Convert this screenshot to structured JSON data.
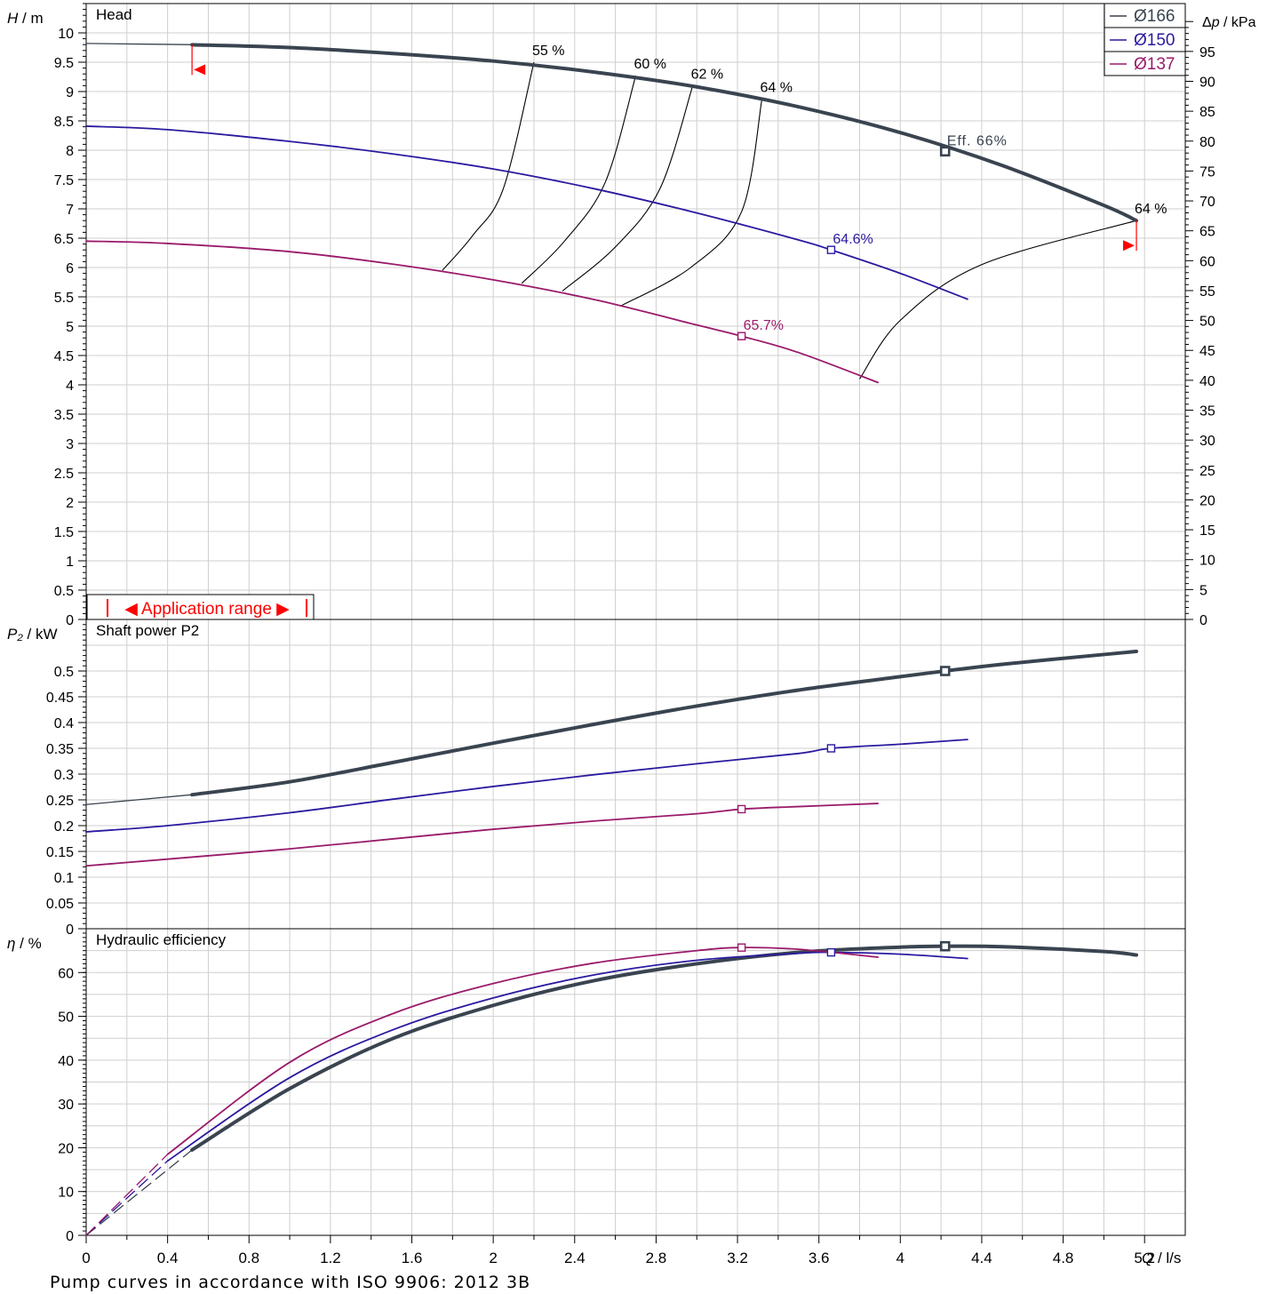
{
  "chart_data": {
    "type": "line",
    "x_axis": {
      "label": "Q",
      "unit": "l/s",
      "range": [
        0,
        5.4
      ],
      "grid_step": 0.2,
      "label_step": 0.4,
      "tick_labels": [
        "0",
        "0.4",
        "0.8",
        "1.2",
        "1.6",
        "2",
        "2.4",
        "2.8",
        "3.2",
        "3.6",
        "4",
        "4.4",
        "4.8",
        "5.2"
      ]
    },
    "series_colors": {
      "Ø166": "#3a4450",
      "Ø150": "#2a1aa0",
      "Ø137": "#9a1a6a"
    },
    "legend": {
      "placement": "top-right",
      "entries": [
        {
          "label": "Ø166",
          "color": "#3a4450"
        },
        {
          "label": "Ø150",
          "color": "#2a1aa0"
        },
        {
          "label": "Ø137",
          "color": "#9a1a6a"
        }
      ]
    },
    "application_range": {
      "label": "Application range",
      "q_min": 0.52,
      "q_max": 5.16,
      "color": "#ff0000"
    },
    "footer_note": "Pump curves in accordance with ISO 9906: 2012 3B",
    "panels": [
      {
        "id": "head",
        "title": "Head",
        "y_label": "H",
        "y_unit": "m",
        "y_range": [
          0,
          10.5
        ],
        "y_tick_labels": [
          "0",
          "0.5",
          "1",
          "1.5",
          "2",
          "2.5",
          "3",
          "3.5",
          "4",
          "4.5",
          "5",
          "5.5",
          "6",
          "6.5",
          "7",
          "7.5",
          "8",
          "8.5",
          "9",
          "9.5",
          "10"
        ],
        "secondary_axis": {
          "label": "Δp",
          "unit": "kPa",
          "factor": 9.81,
          "tick_labels": [
            "0",
            "5",
            "10",
            "15",
            "20",
            "25",
            "30",
            "35",
            "40",
            "45",
            "50",
            "55",
            "60",
            "65",
            "70",
            "75",
            "80",
            "85",
            "90",
            "95"
          ]
        },
        "series": [
          {
            "name": "Ø166",
            "x": [
              0,
              0.5,
              1.0,
              1.5,
              2.0,
              2.5,
              3.0,
              3.5,
              4.0,
              4.5,
              5.0,
              5.16
            ],
            "y": [
              9.82,
              9.8,
              9.75,
              9.65,
              9.52,
              9.33,
              9.08,
              8.74,
              8.3,
              7.74,
              7.06,
              6.8
            ],
            "bold_from": 0.52,
            "bep": [
              4.22,
              7.98
            ],
            "bep_label": "Eff. 66%"
          },
          {
            "name": "Ø150",
            "x": [
              0,
              0.4,
              1.0,
              1.5,
              2.0,
              2.5,
              3.0,
              3.5,
              3.66,
              4.0,
              4.33
            ],
            "y": [
              8.41,
              8.35,
              8.15,
              7.94,
              7.68,
              7.34,
              6.93,
              6.47,
              6.3,
              5.9,
              5.46
            ],
            "bep": [
              3.66,
              6.3
            ],
            "bep_label": "64.6%"
          },
          {
            "name": "Ø137",
            "x": [
              0,
              0.4,
              1.0,
              1.5,
              2.0,
              2.5,
              3.0,
              3.22,
              3.5,
              3.89
            ],
            "y": [
              6.45,
              6.41,
              6.27,
              6.06,
              5.79,
              5.45,
              5.02,
              4.83,
              4.55,
              4.04
            ],
            "bep": [
              3.22,
              4.83
            ],
            "bep_label": "65.7%"
          }
        ],
        "iso_efficiency": [
          {
            "label": "55 %",
            "x": [
              1.75,
              1.9,
              2.05,
              2.2
            ],
            "y": [
              5.95,
              6.55,
              7.35,
              9.5
            ]
          },
          {
            "label": "60 %",
            "x": [
              2.14,
              2.35,
              2.55,
              2.7
            ],
            "y": [
              5.73,
              6.45,
              7.45,
              9.27
            ]
          },
          {
            "label": "62 %",
            "x": [
              2.34,
              2.6,
              2.82,
              2.98
            ],
            "y": [
              5.6,
              6.35,
              7.35,
              9.1
            ]
          },
          {
            "label": "64 %",
            "x": [
              2.63,
              2.97,
              3.22,
              3.32
            ],
            "y": [
              5.35,
              6.0,
              6.95,
              8.87
            ]
          },
          {
            "label": "64 %",
            "x": [
              3.8,
              4.0,
              4.4,
              5.16
            ],
            "y": [
              4.1,
              5.1,
              6.05,
              6.8
            ]
          }
        ]
      },
      {
        "id": "power",
        "title": "Shaft power P2",
        "y_label": "P₂",
        "y_unit": "kW",
        "y_range": [
          0,
          0.6
        ],
        "y_tick_labels": [
          "0",
          "0.05",
          "0.1",
          "0.15",
          "0.2",
          "0.25",
          "0.3",
          "0.35",
          "0.4",
          "0.45",
          "0.5"
        ],
        "series": [
          {
            "name": "Ø166",
            "x": [
              0,
              0.52,
              1.0,
              1.5,
              2.0,
              2.5,
              3.0,
              3.5,
              4.0,
              4.22,
              4.5,
              5.0,
              5.16
            ],
            "y": [
              0.241,
              0.26,
              0.285,
              0.322,
              0.36,
              0.397,
              0.432,
              0.463,
              0.489,
              0.5,
              0.513,
              0.532,
              0.538
            ],
            "bold_from": 0.52,
            "bep": [
              4.22,
              0.5
            ]
          },
          {
            "name": "Ø150",
            "x": [
              0,
              0.4,
              1.0,
              1.5,
              2.0,
              2.5,
              3.0,
              3.5,
              3.66,
              4.0,
              4.33
            ],
            "y": [
              0.188,
              0.2,
              0.225,
              0.251,
              0.276,
              0.299,
              0.32,
              0.34,
              0.35,
              0.358,
              0.367
            ],
            "bep": [
              3.66,
              0.35
            ]
          },
          {
            "name": "Ø137",
            "x": [
              0,
              0.4,
              1.0,
              1.5,
              2.0,
              2.5,
              3.0,
              3.22,
              3.5,
              3.89
            ],
            "y": [
              0.122,
              0.135,
              0.155,
              0.174,
              0.193,
              0.209,
              0.223,
              0.232,
              0.237,
              0.243
            ],
            "bep": [
              3.22,
              0.232
            ]
          }
        ]
      },
      {
        "id": "efficiency",
        "title": "Hydraulic efficiency",
        "y_label": "η",
        "y_unit": "%",
        "y_range": [
          0,
          70
        ],
        "y_tick_labels": [
          "0",
          "10",
          "20",
          "30",
          "40",
          "50",
          "60"
        ],
        "series": [
          {
            "name": "Ø166",
            "x": [
              0,
              0.52,
              1.0,
              1.5,
              2.0,
              2.5,
              3.0,
              3.5,
              4.0,
              4.22,
              4.5,
              5.0,
              5.16
            ],
            "y": [
              0,
              19.5,
              33.5,
              44.8,
              52.5,
              58.2,
              62.0,
              64.6,
              65.8,
              66.0,
              65.9,
              64.8,
              64.0
            ],
            "dashed_until": 0.5,
            "bold_from": 0.52,
            "bep": [
              4.22,
              66
            ]
          },
          {
            "name": "Ø150",
            "x": [
              0,
              0.4,
              1.0,
              1.5,
              2.0,
              2.5,
              3.0,
              3.5,
              3.66,
              4.0,
              4.33
            ],
            "y": [
              0,
              17.0,
              36.0,
              46.8,
              54.2,
              59.5,
              62.8,
              64.4,
              64.6,
              64.2,
              63.2
            ],
            "dashed_until": 0.4,
            "bep": [
              3.66,
              64.6
            ]
          },
          {
            "name": "Ø137",
            "x": [
              0,
              0.4,
              1.0,
              1.5,
              2.0,
              2.5,
              3.0,
              3.22,
              3.5,
              3.89
            ],
            "y": [
              0,
              18.5,
              39.5,
              50.5,
              57.5,
              62.2,
              65.0,
              65.7,
              65.3,
              63.5
            ],
            "dashed_until": 0.4,
            "bep": [
              3.22,
              65.7
            ]
          }
        ]
      }
    ]
  }
}
